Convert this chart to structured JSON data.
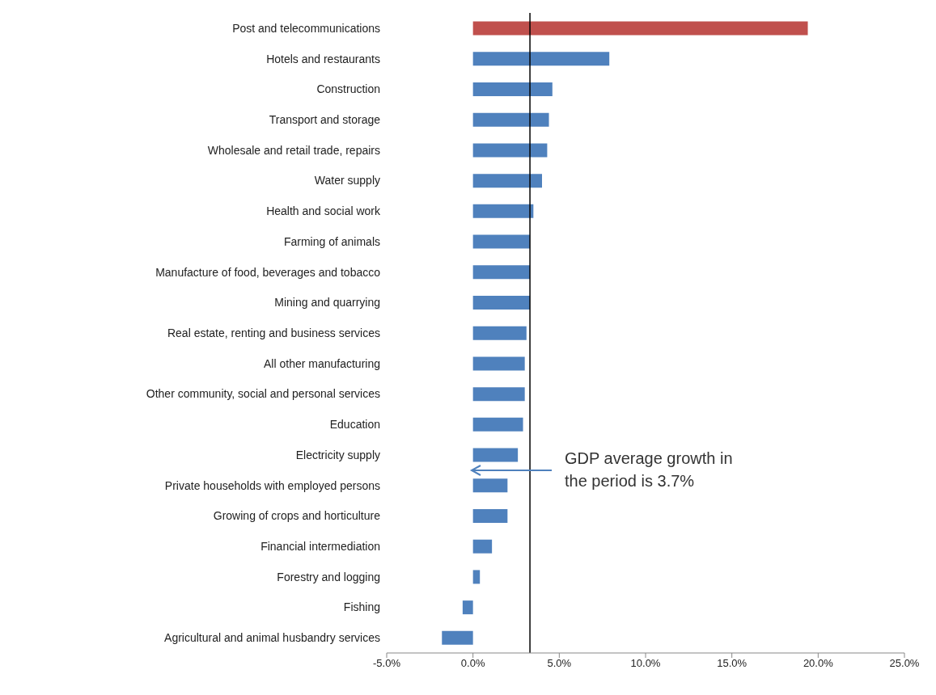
{
  "chart_data": {
    "type": "bar",
    "orientation": "horizontal",
    "categories": [
      "Post and telecommunications",
      "Hotels and restaurants",
      "Construction",
      "Transport and storage",
      "Wholesale and retail trade, repairs",
      "Water supply",
      "Health and social work",
      "Farming of animals",
      "Manufacture of food, beverages and tobacco",
      "Mining and quarrying",
      "Real estate, renting and business services",
      "All other manufacturing",
      "Other community, social and personal services",
      "Education",
      "Electricity supply",
      "Private households with employed persons",
      "Growing of crops and horticulture",
      "Financial intermediation",
      "Forestry and logging",
      "Fishing",
      "Agricultural and animal husbandry services"
    ],
    "values": [
      19.4,
      7.9,
      4.6,
      4.4,
      4.3,
      4.0,
      3.5,
      3.3,
      3.3,
      3.3,
      3.1,
      3.0,
      3.0,
      2.9,
      2.6,
      2.0,
      2.0,
      1.1,
      0.4,
      -0.6,
      -1.8
    ],
    "colors": [
      "#c0504d",
      "#4f81bd",
      "#4f81bd",
      "#4f81bd",
      "#4f81bd",
      "#4f81bd",
      "#4f81bd",
      "#4f81bd",
      "#4f81bd",
      "#4f81bd",
      "#4f81bd",
      "#4f81bd",
      "#4f81bd",
      "#4f81bd",
      "#4f81bd",
      "#4f81bd",
      "#4f81bd",
      "#4f81bd",
      "#4f81bd",
      "#4f81bd",
      "#4f81bd"
    ],
    "xlim": [
      -5,
      25
    ],
    "xticks": [
      {
        "value": -5,
        "label": "-5.0%"
      },
      {
        "value": 0,
        "label": "0.0%"
      },
      {
        "value": 5,
        "label": "5.0%"
      },
      {
        "value": 10,
        "label": "10.0%"
      },
      {
        "value": 15,
        "label": "15.0%"
      },
      {
        "value": 20,
        "label": "20.0%"
      },
      {
        "value": 25,
        "label": "25.0%"
      }
    ],
    "ref_lines": [
      {
        "axis": "x",
        "value": 3.3,
        "color": "#000000"
      }
    ],
    "annotations": [
      "GDP average growth in\nthe period is 3.7%"
    ],
    "grid": false,
    "legend": false
  }
}
